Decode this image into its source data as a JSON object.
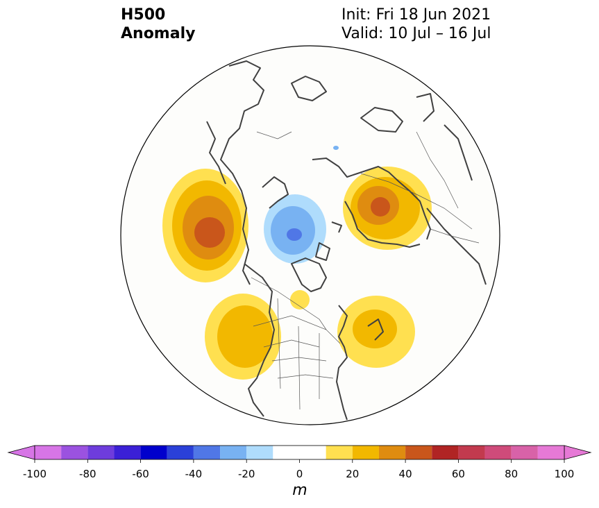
{
  "title": {
    "variable_line1": "H500",
    "variable_line2": "Anomaly",
    "init_text": "Init: Fri 18 Jun 2021",
    "valid_text": "Valid: 10 Jul – 16 Jul"
  },
  "colorbar": {
    "unit": "m",
    "tick_labels": [
      "-100",
      "-80",
      "-60",
      "-40",
      "-20",
      "0",
      "20",
      "40",
      "60",
      "80",
      "100"
    ],
    "ticks": [
      -100,
      -80,
      -60,
      -40,
      -20,
      0,
      20,
      40,
      60,
      80,
      100
    ],
    "levels": [
      -100,
      -90,
      -80,
      -70,
      -60,
      -50,
      -40,
      -30,
      -20,
      -10,
      10,
      20,
      30,
      40,
      50,
      60,
      70,
      80,
      90,
      100
    ],
    "colors": [
      "#d775e6",
      "#9b52e0",
      "#6e3cdc",
      "#3b20d6",
      "#0000cc",
      "#2a40d8",
      "#5077e6",
      "#78b2f2",
      "#afdcfc",
      "#ffffff",
      "#ffe050",
      "#f2b800",
      "#df8c10",
      "#c9561b",
      "#b02424",
      "#c23a4e",
      "#cf4b7a",
      "#d862a8",
      "#e679d6"
    ],
    "extend_low_color": "#d775e6",
    "extend_high_color": "#e679d6"
  }
}
